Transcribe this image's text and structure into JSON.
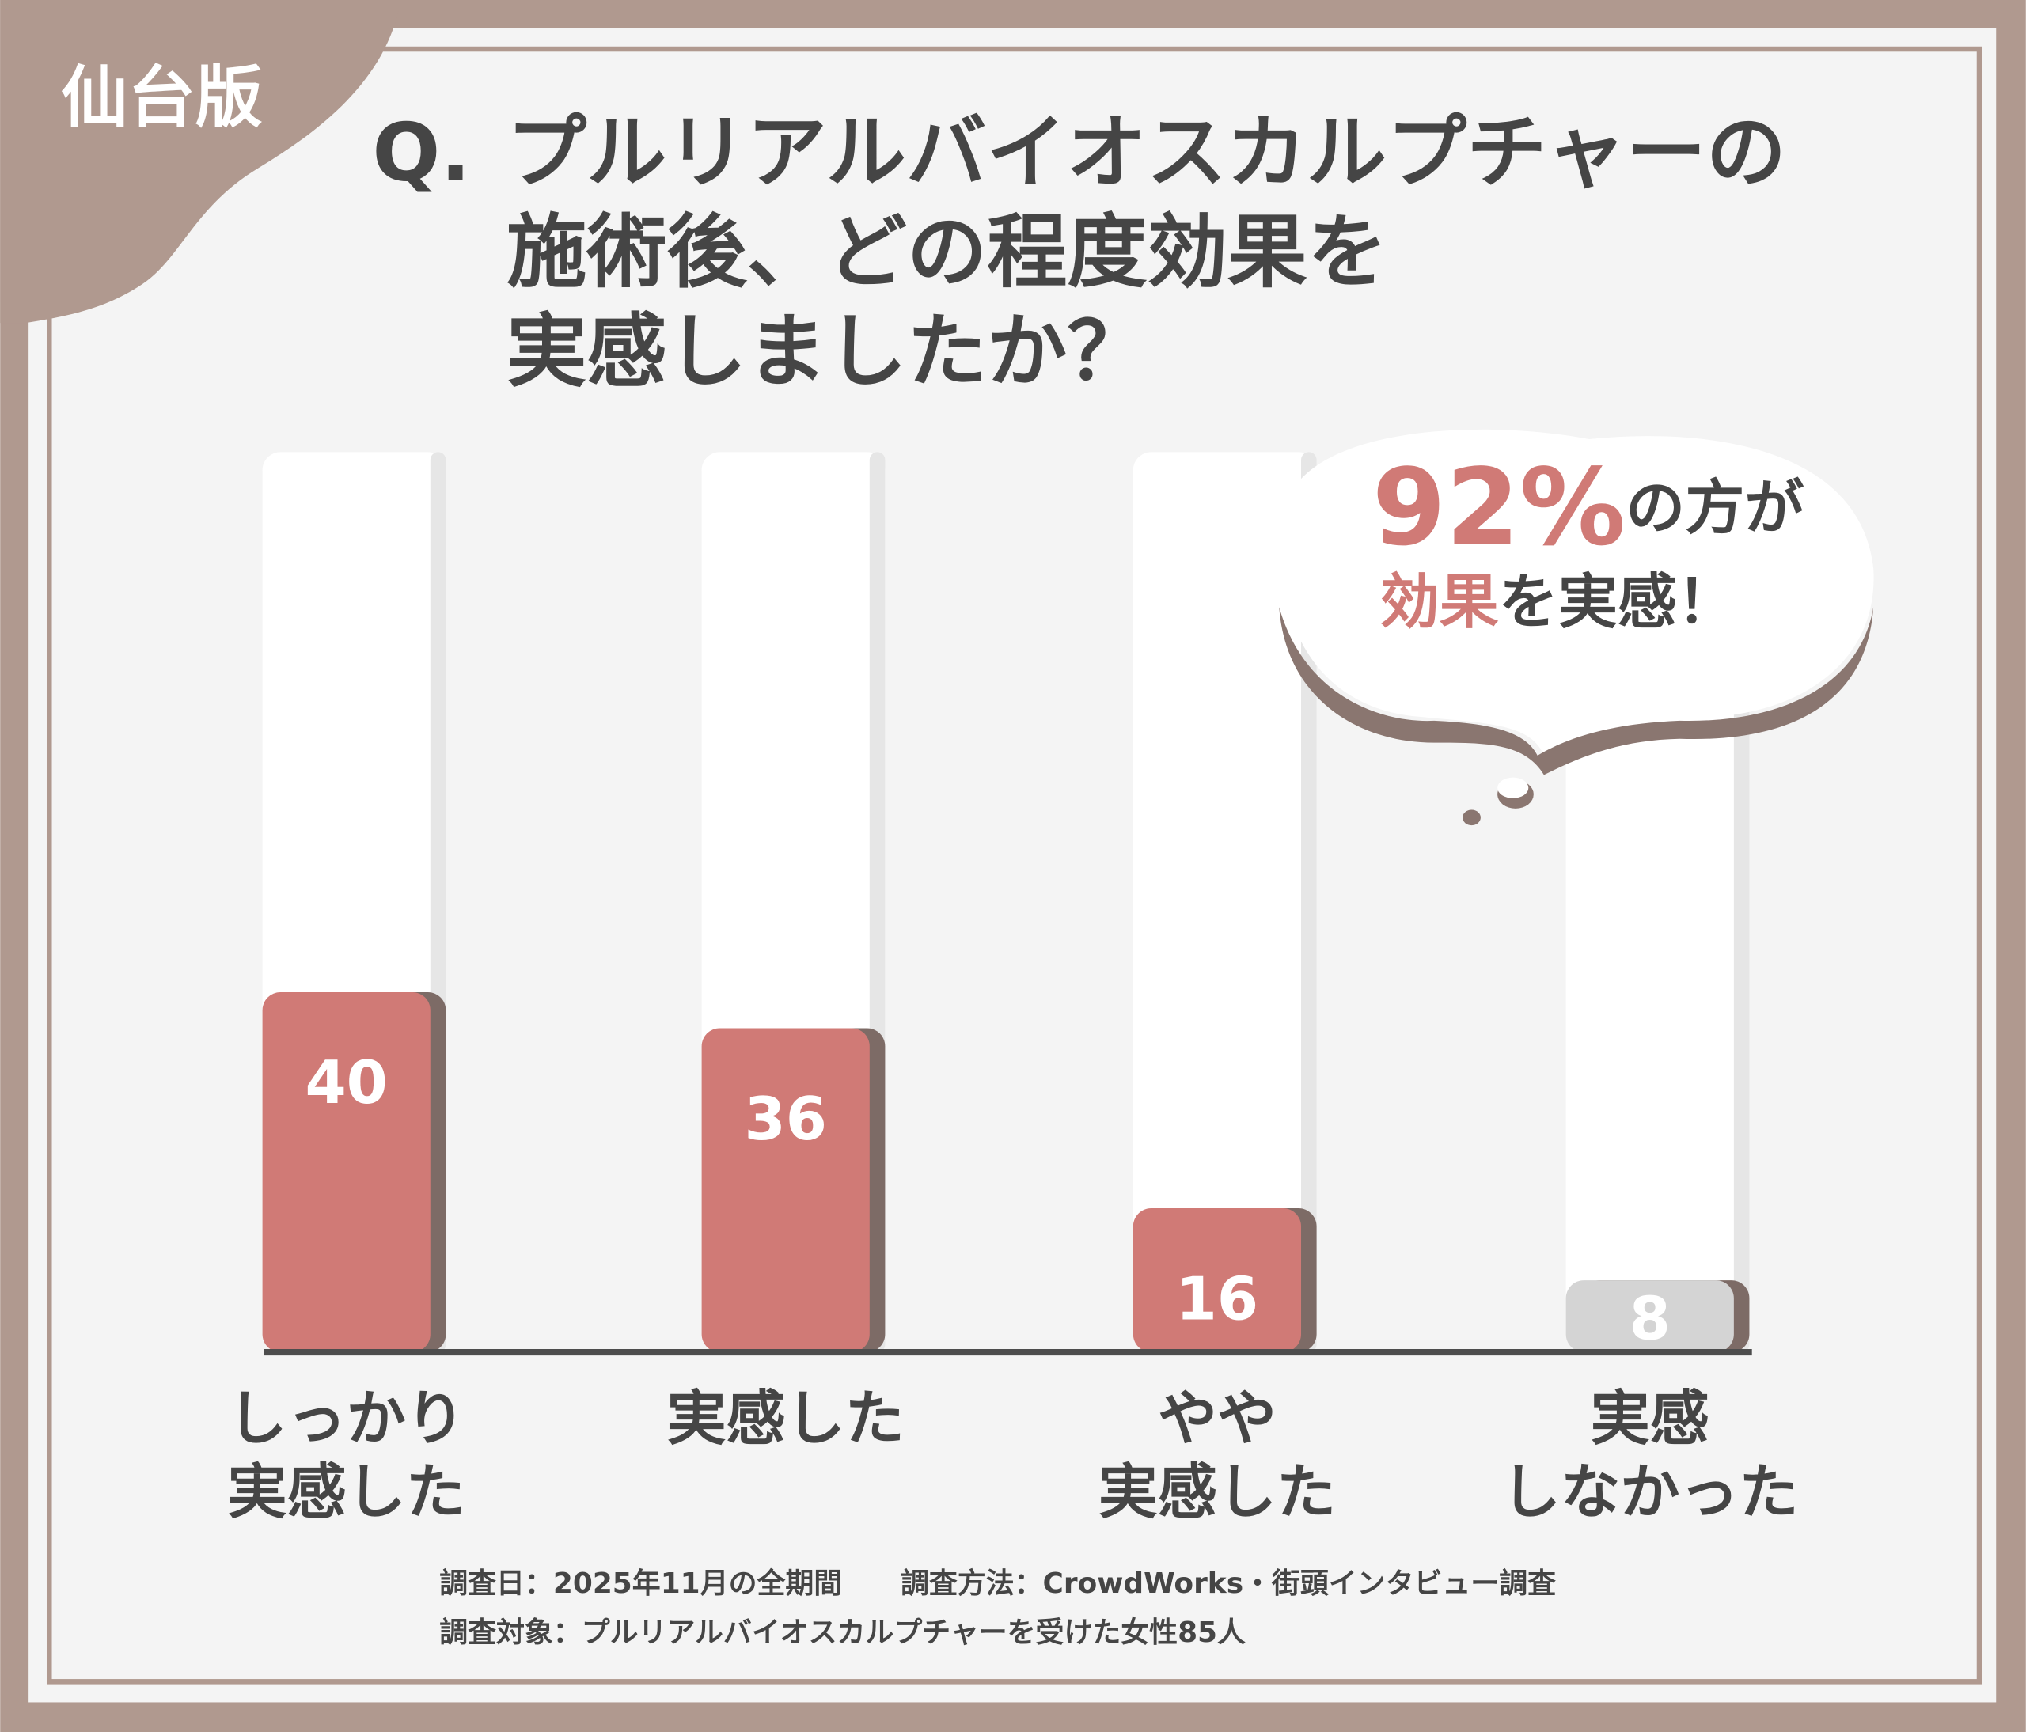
{
  "badge": "仙台版",
  "chart_data": {
    "type": "bar",
    "title_prefix": "Q.",
    "title_lines": [
      "プルリアルバイオスカルプチャーの",
      "施術後、どの程度効果を",
      "実感しましたか？"
    ],
    "categories": [
      [
        "しっかり",
        "実感した"
      ],
      [
        "実感した"
      ],
      [
        "やや",
        "実感した"
      ],
      [
        "実感",
        "しなかった"
      ]
    ],
    "values": [
      40,
      36,
      16,
      8
    ],
    "colors": [
      "#d07a76",
      "#d07a76",
      "#d07a76",
      "#d4d4d4"
    ],
    "ylim": [
      0,
      100
    ],
    "callout": {
      "big": "92%",
      "line1_rest": "の方が",
      "line2_accent": "効果",
      "line2_rest": "を実感！"
    }
  },
  "footnotes": {
    "date": "調査日：2025年11月の全期間",
    "method": "調査方法：CrowdWorks・街頭インタビュー調査",
    "target": "調査対象：プルリアルバイオスカルプチャーを受けた女性85人"
  }
}
